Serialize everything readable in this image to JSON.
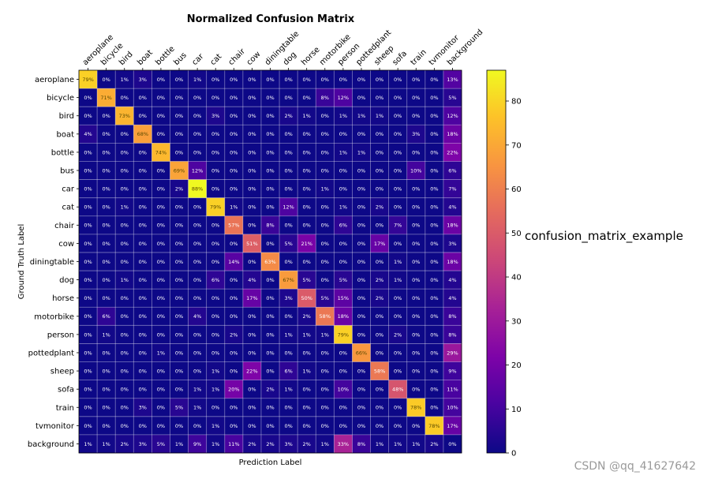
{
  "chart_data": {
    "type": "heatmap",
    "title": "Normalized Confusion Matrix",
    "xlabel": "Prediction Label",
    "ylabel": "Ground Truth Label",
    "categories": [
      "aeroplane",
      "bicycle",
      "bird",
      "boat",
      "bottle",
      "bus",
      "car",
      "cat",
      "chair",
      "cow",
      "diningtable",
      "dog",
      "horse",
      "motorbike",
      "person",
      "pottedplant",
      "sheep",
      "sofa",
      "train",
      "tvmonitor",
      "background"
    ],
    "values": [
      [
        79,
        0,
        1,
        3,
        0,
        0,
        1,
        0,
        0,
        0,
        0,
        0,
        0,
        0,
        0,
        0,
        0,
        0,
        0,
        0,
        13
      ],
      [
        0,
        71,
        0,
        0,
        0,
        0,
        0,
        0,
        0,
        0,
        0,
        0,
        0,
        8,
        12,
        0,
        0,
        0,
        0,
        0,
        5
      ],
      [
        0,
        0,
        73,
        0,
        0,
        0,
        0,
        3,
        0,
        0,
        0,
        2,
        1,
        0,
        1,
        1,
        1,
        0,
        0,
        0,
        12
      ],
      [
        4,
        0,
        0,
        68,
        0,
        0,
        0,
        0,
        0,
        0,
        0,
        0,
        0,
        0,
        0,
        0,
        0,
        0,
        3,
        0,
        18
      ],
      [
        0,
        0,
        0,
        0,
        74,
        0,
        0,
        0,
        0,
        0,
        0,
        0,
        0,
        0,
        1,
        1,
        0,
        0,
        0,
        0,
        22
      ],
      [
        0,
        0,
        0,
        0,
        0,
        69,
        12,
        0,
        0,
        0,
        0,
        0,
        0,
        0,
        0,
        0,
        0,
        0,
        10,
        0,
        6
      ],
      [
        0,
        0,
        0,
        0,
        0,
        2,
        88,
        0,
        0,
        0,
        0,
        0,
        0,
        1,
        0,
        0,
        0,
        0,
        0,
        0,
        7
      ],
      [
        0,
        0,
        1,
        0,
        0,
        0,
        0,
        79,
        1,
        0,
        0,
        12,
        0,
        0,
        1,
        0,
        2,
        0,
        0,
        0,
        4
      ],
      [
        0,
        0,
        0,
        0,
        0,
        0,
        0,
        0,
        57,
        0,
        8,
        0,
        0,
        0,
        6,
        0,
        0,
        7,
        0,
        0,
        18
      ],
      [
        0,
        0,
        0,
        0,
        0,
        0,
        0,
        0,
        0,
        51,
        0,
        5,
        21,
        0,
        0,
        0,
        17,
        0,
        0,
        0,
        3
      ],
      [
        0,
        0,
        0,
        0,
        0,
        0,
        0,
        0,
        14,
        0,
        63,
        0,
        0,
        0,
        0,
        0,
        0,
        1,
        0,
        0,
        18
      ],
      [
        0,
        0,
        1,
        0,
        0,
        0,
        0,
        6,
        0,
        4,
        0,
        67,
        5,
        0,
        5,
        0,
        2,
        1,
        0,
        0,
        4
      ],
      [
        0,
        0,
        0,
        0,
        0,
        0,
        0,
        0,
        0,
        17,
        0,
        3,
        50,
        5,
        15,
        0,
        2,
        0,
        0,
        0,
        4
      ],
      [
        0,
        6,
        0,
        0,
        0,
        0,
        4,
        0,
        0,
        0,
        0,
        0,
        2,
        58,
        18,
        0,
        0,
        0,
        0,
        0,
        8
      ],
      [
        0,
        1,
        0,
        0,
        0,
        0,
        0,
        0,
        2,
        0,
        0,
        1,
        1,
        1,
        79,
        0,
        0,
        2,
        0,
        0,
        8
      ],
      [
        0,
        0,
        0,
        0,
        1,
        0,
        0,
        0,
        0,
        0,
        0,
        0,
        0,
        0,
        0,
        66,
        0,
        0,
        0,
        0,
        29
      ],
      [
        0,
        0,
        0,
        0,
        0,
        0,
        0,
        1,
        0,
        22,
        0,
        6,
        1,
        0,
        0,
        0,
        58,
        0,
        0,
        0,
        9
      ],
      [
        0,
        0,
        0,
        0,
        0,
        0,
        1,
        1,
        20,
        0,
        2,
        1,
        0,
        0,
        10,
        0,
        0,
        48,
        0,
        0,
        11
      ],
      [
        0,
        0,
        0,
        3,
        0,
        5,
        1,
        0,
        0,
        0,
        0,
        0,
        0,
        0,
        0,
        0,
        0,
        0,
        78,
        0,
        10
      ],
      [
        0,
        0,
        0,
        0,
        0,
        0,
        0,
        1,
        0,
        0,
        0,
        0,
        0,
        0,
        0,
        0,
        0,
        0,
        0,
        78,
        17
      ],
      [
        1,
        1,
        2,
        3,
        5,
        1,
        9,
        1,
        11,
        2,
        2,
        3,
        2,
        1,
        33,
        8,
        1,
        1,
        1,
        2,
        0
      ]
    ],
    "value_suffix": "%",
    "colormap": "plasma",
    "colorbar": {
      "ticks": [
        0,
        10,
        20,
        30,
        40,
        50,
        60,
        70,
        80
      ],
      "range": [
        0,
        87
      ]
    },
    "side_label": "confusion_matrix_example"
  },
  "watermark": "CSDN @qq_41627642"
}
